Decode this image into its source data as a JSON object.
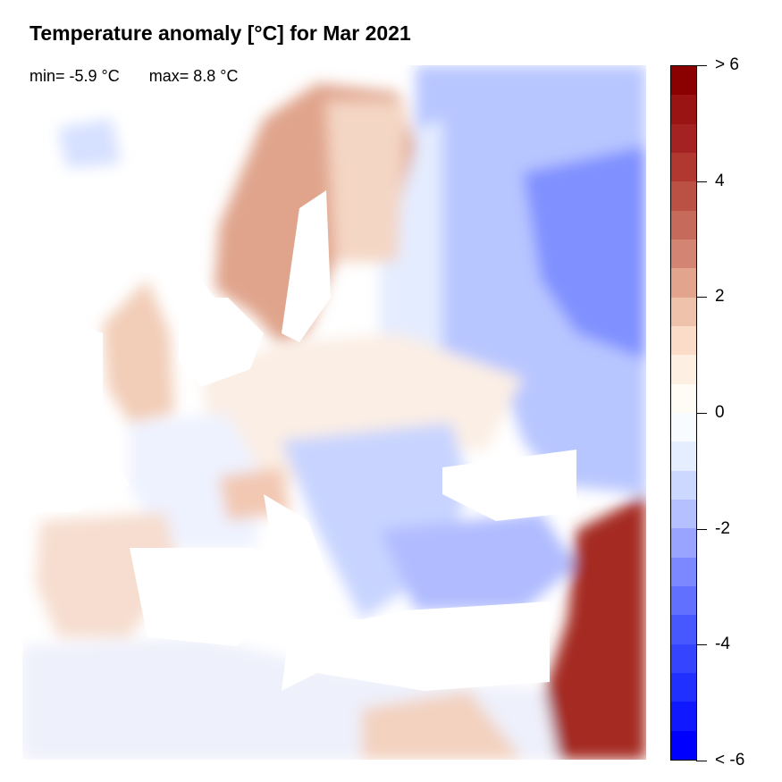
{
  "title": "Temperature anomaly [°C] for Mar 2021",
  "stats": {
    "min": "min= -5.9 °C",
    "max": "max= 8.8 °C"
  },
  "colorbar": {
    "labels": [
      "> 6",
      "4",
      "2",
      "0",
      "-2",
      "-4",
      "< -6"
    ],
    "colors": [
      "#8b0000",
      "#9a1414",
      "#a52222",
      "#b03830",
      "#bb5045",
      "#c66a5c",
      "#d48472",
      "#e2a48c",
      "#efc2ac",
      "#fadcc8",
      "#fdefe2",
      "#fffcf6",
      "#f8fbff",
      "#e4eeff",
      "#ccd8ff",
      "#b4c0ff",
      "#98a4ff",
      "#7c88ff",
      "#6270ff",
      "#4858ff",
      "#3444ff",
      "#2030ff",
      "#1018ff",
      "#0000ff"
    ]
  }
}
